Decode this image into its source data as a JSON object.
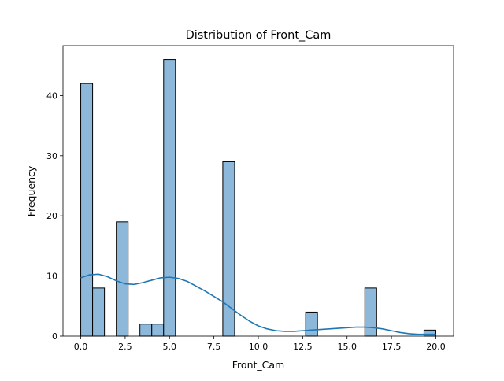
{
  "chart_data": {
    "type": "bar",
    "title": "Distribution of Front_Cam",
    "xlabel": "Front_Cam",
    "ylabel": "Frequency",
    "xlim": [
      -1.0,
      21.0
    ],
    "ylim": [
      0,
      48.3
    ],
    "xticks": [
      0,
      2.5,
      5,
      7.5,
      10,
      12.5,
      15,
      17.5,
      20
    ],
    "xtick_labels": [
      "0.0",
      "2.5",
      "5.0",
      "7.5",
      "10.0",
      "12.5",
      "15.0",
      "17.5",
      "20.0"
    ],
    "yticks": [
      0,
      10,
      20,
      30,
      40
    ],
    "ytick_labels": [
      "0",
      "10",
      "20",
      "30",
      "40"
    ],
    "grid": false,
    "bin_width": 0.667,
    "bins": [
      {
        "start": 0.0,
        "value": 42
      },
      {
        "start": 0.667,
        "value": 8
      },
      {
        "start": 2.0,
        "value": 19
      },
      {
        "start": 3.333,
        "value": 2
      },
      {
        "start": 4.0,
        "value": 2
      },
      {
        "start": 4.667,
        "value": 46
      },
      {
        "start": 8.0,
        "value": 29
      },
      {
        "start": 12.667,
        "value": 4
      },
      {
        "start": 16.0,
        "value": 8
      },
      {
        "start": 19.333,
        "value": 1
      }
    ],
    "kde": {
      "x": [
        0,
        0.5,
        1,
        1.5,
        2,
        2.5,
        3,
        3.5,
        4,
        4.5,
        5,
        5.5,
        6,
        6.5,
        7,
        7.5,
        8,
        8.5,
        9,
        9.5,
        10,
        10.5,
        11,
        11.5,
        12,
        12.5,
        13,
        13.5,
        14,
        14.5,
        15,
        15.5,
        16,
        16.5,
        17,
        17.5,
        18,
        18.5,
        19,
        19.5,
        20
      ],
      "y": [
        9.7,
        10.2,
        10.3,
        9.9,
        9.2,
        8.7,
        8.6,
        8.9,
        9.3,
        9.7,
        9.8,
        9.6,
        9.1,
        8.3,
        7.5,
        6.6,
        5.7,
        4.6,
        3.5,
        2.5,
        1.7,
        1.2,
        0.9,
        0.8,
        0.8,
        0.9,
        1.0,
        1.1,
        1.2,
        1.3,
        1.4,
        1.5,
        1.5,
        1.4,
        1.2,
        0.9,
        0.6,
        0.4,
        0.3,
        0.3,
        0.3
      ]
    },
    "colors": {
      "bar_fill": "#8db8d9",
      "bar_edge": "#000000",
      "kde_line": "#1f77b4"
    }
  }
}
